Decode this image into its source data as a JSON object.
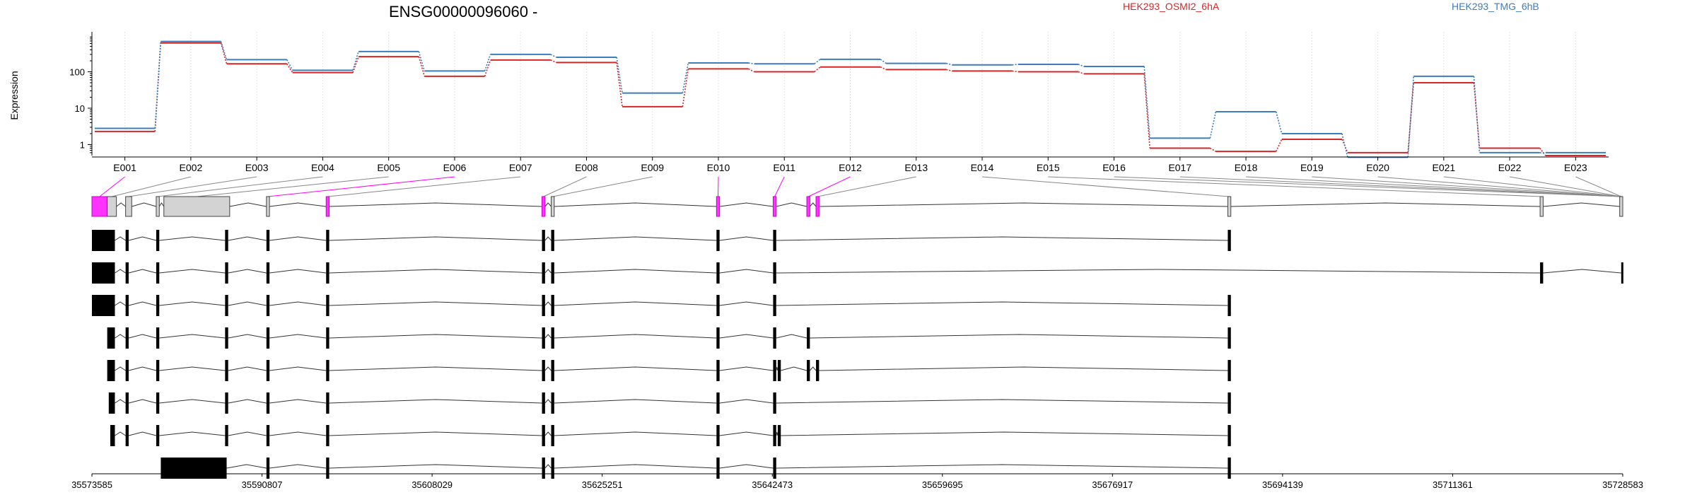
{
  "chart_data": {
    "type": "line",
    "title": "ENSG00000096060 -",
    "ylabel": "Expression",
    "y_scale": "log",
    "yticks": [
      "1",
      "10",
      "100"
    ],
    "categories": [
      "E001",
      "E002",
      "E003",
      "E004",
      "E005",
      "E006",
      "E007",
      "E008",
      "E009",
      "E010",
      "E011",
      "E012",
      "E013",
      "E014",
      "E015",
      "E016",
      "E017",
      "E018",
      "E019",
      "E020",
      "E021",
      "E022",
      "E023"
    ],
    "series": [
      {
        "name": "HEK293_OSMI2_6hA",
        "color": "#d62728",
        "values": [
          2.3,
          620,
          165,
          95,
          260,
          75,
          210,
          180,
          11,
          120,
          100,
          135,
          115,
          105,
          100,
          88,
          0.8,
          0.65,
          1.4,
          0.6,
          50,
          0.8,
          0.5
        ]
      },
      {
        "name": "HEK293_TMG_6hB",
        "color": "#3b7dbd",
        "values": [
          2.8,
          680,
          215,
          110,
          360,
          105,
          300,
          250,
          26,
          175,
          165,
          220,
          170,
          155,
          160,
          140,
          1.5,
          8,
          2,
          0.45,
          75,
          0.6,
          0.6
        ]
      }
    ],
    "exon_span_fraction": [
      [
        0.0,
        0.01
      ],
      [
        0.01,
        0.016
      ],
      [
        0.022,
        0.026
      ],
      [
        0.042,
        0.044
      ],
      [
        0.047,
        0.09
      ],
      [
        0.114,
        0.116
      ],
      [
        0.153,
        0.155
      ],
      [
        0.294,
        0.296
      ],
      [
        0.3,
        0.302
      ],
      [
        0.408,
        0.41
      ],
      [
        0.445,
        0.447
      ],
      [
        0.467,
        0.469
      ],
      [
        0.473,
        0.475
      ],
      [
        0.742,
        0.744
      ],
      [
        0.946,
        0.948
      ],
      [
        0.998,
        1.0
      ]
    ],
    "exon_connector_colors": [
      "#ff00ff",
      "#888888",
      "#888888",
      "#888888",
      "#888888",
      "#ff00ff",
      "#888888",
      "#888888",
      "#888888",
      "#ff00ff",
      "#ff00ff",
      "#ff00ff",
      "#888888",
      "#888888",
      "#888888",
      "#888888",
      "#888888",
      "#888888",
      "#888888",
      "#888888",
      "#888888",
      "#888888",
      "#888888"
    ],
    "genomic_axis_labels": [
      "35573585",
      "35590807",
      "35608029",
      "35625251",
      "35642473",
      "35659695",
      "35676917",
      "35694139",
      "35711361",
      "35728583"
    ],
    "transcripts": [
      [
        [
          0.0,
          0.015
        ],
        [
          0.022,
          0.024
        ],
        [
          0.042,
          0.044
        ],
        [
          0.087,
          0.089
        ],
        [
          0.114,
          0.116
        ],
        [
          0.153,
          0.155
        ],
        [
          0.294,
          0.296
        ],
        [
          0.3,
          0.302
        ],
        [
          0.408,
          0.41
        ],
        [
          0.445,
          0.447
        ],
        [
          0.742,
          0.744
        ]
      ],
      [
        [
          0.0,
          0.015
        ],
        [
          0.022,
          0.024
        ],
        [
          0.042,
          0.044
        ],
        [
          0.087,
          0.089
        ],
        [
          0.114,
          0.116
        ],
        [
          0.153,
          0.155
        ],
        [
          0.294,
          0.296
        ],
        [
          0.3,
          0.302
        ],
        [
          0.408,
          0.41
        ],
        [
          0.445,
          0.447
        ],
        [
          0.946,
          0.948
        ],
        [
          0.999,
          1.0
        ]
      ],
      [
        [
          0.0,
          0.015
        ],
        [
          0.022,
          0.024
        ],
        [
          0.042,
          0.044
        ],
        [
          0.087,
          0.089
        ],
        [
          0.114,
          0.116
        ],
        [
          0.153,
          0.155
        ],
        [
          0.294,
          0.296
        ],
        [
          0.3,
          0.302
        ],
        [
          0.408,
          0.41
        ],
        [
          0.445,
          0.447
        ],
        [
          0.742,
          0.744
        ]
      ],
      [
        [
          0.01,
          0.015
        ],
        [
          0.022,
          0.024
        ],
        [
          0.042,
          0.044
        ],
        [
          0.087,
          0.089
        ],
        [
          0.114,
          0.116
        ],
        [
          0.153,
          0.155
        ],
        [
          0.294,
          0.296
        ],
        [
          0.3,
          0.302
        ],
        [
          0.408,
          0.41
        ],
        [
          0.445,
          0.447
        ],
        [
          0.467,
          0.469
        ],
        [
          0.742,
          0.744
        ]
      ],
      [
        [
          0.01,
          0.015
        ],
        [
          0.022,
          0.024
        ],
        [
          0.042,
          0.044
        ],
        [
          0.087,
          0.089
        ],
        [
          0.114,
          0.116
        ],
        [
          0.153,
          0.155
        ],
        [
          0.294,
          0.296
        ],
        [
          0.3,
          0.302
        ],
        [
          0.408,
          0.41
        ],
        [
          0.445,
          0.447
        ],
        [
          0.448,
          0.45
        ],
        [
          0.467,
          0.469
        ],
        [
          0.473,
          0.475
        ],
        [
          0.742,
          0.744
        ]
      ],
      [
        [
          0.011,
          0.015
        ],
        [
          0.022,
          0.024
        ],
        [
          0.042,
          0.044
        ],
        [
          0.087,
          0.089
        ],
        [
          0.114,
          0.116
        ],
        [
          0.153,
          0.155
        ],
        [
          0.294,
          0.296
        ],
        [
          0.3,
          0.302
        ],
        [
          0.408,
          0.41
        ],
        [
          0.445,
          0.447
        ],
        [
          0.742,
          0.744
        ]
      ],
      [
        [
          0.012,
          0.015
        ],
        [
          0.022,
          0.024
        ],
        [
          0.042,
          0.044
        ],
        [
          0.087,
          0.089
        ],
        [
          0.114,
          0.116
        ],
        [
          0.153,
          0.155
        ],
        [
          0.294,
          0.296
        ],
        [
          0.3,
          0.302
        ],
        [
          0.408,
          0.41
        ],
        [
          0.445,
          0.447
        ],
        [
          0.448,
          0.45
        ],
        [
          0.742,
          0.744
        ]
      ],
      [
        [
          0.045,
          0.088
        ],
        [
          0.114,
          0.116
        ],
        [
          0.153,
          0.155
        ],
        [
          0.294,
          0.296
        ],
        [
          0.3,
          0.302
        ],
        [
          0.408,
          0.41
        ],
        [
          0.445,
          0.447
        ],
        [
          0.742,
          0.744
        ]
      ]
    ]
  }
}
